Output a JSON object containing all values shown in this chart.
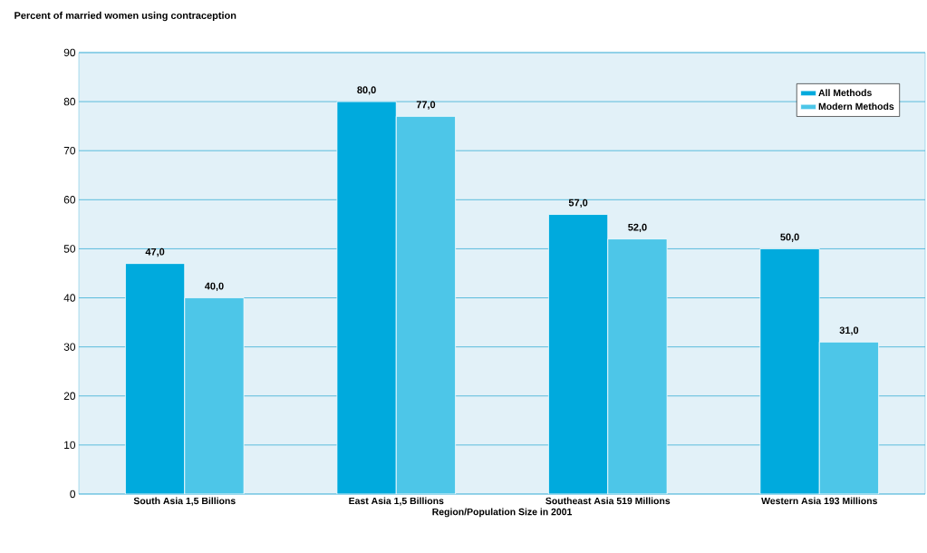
{
  "chart_data": {
    "type": "bar",
    "title": "Percent of married women using contraception",
    "xlabel": "Region/Population Size in 2001",
    "categories": [
      "South Asia 1,5 Billions",
      "East Asia 1,5 Billions",
      "Southeast Asia 519 Millions",
      "Western Asia 193 Millions"
    ],
    "series": [
      {
        "name": "All Methods",
        "color": "#00aadd",
        "values": [
          47,
          80,
          57,
          50
        ],
        "value_labels": [
          "47,0",
          "80,0",
          "57,0",
          "50,0"
        ]
      },
      {
        "name": "Modern Methods",
        "color": "#4dc6e8",
        "values": [
          40,
          77,
          52,
          31
        ],
        "value_labels": [
          "40,0",
          "77,0",
          "52,0",
          "31,0"
        ]
      }
    ],
    "ylim": [
      0,
      90
    ],
    "yticks": [
      0,
      10,
      20,
      30,
      40,
      50,
      60,
      70,
      80,
      90
    ],
    "grid": "y",
    "legend": "top right"
  }
}
